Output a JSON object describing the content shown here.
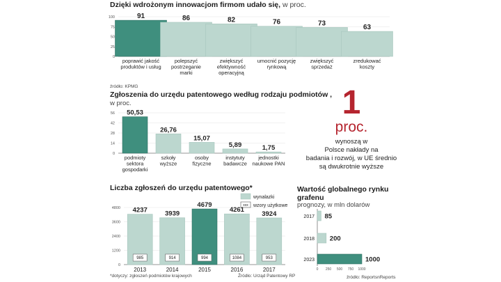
{
  "colors": {
    "highlight": "#3f8f7e",
    "light": "#bcd7cf",
    "accent_red": "#b5252f",
    "axis": "#777777"
  },
  "chart_data": [
    {
      "type": "bar",
      "title": "Dzięki wdrożonym innowacjom firmom udało się,",
      "subtitle": "w proc.",
      "categories": [
        [
          "poprawić jakość",
          "produktów i usług"
        ],
        [
          "polepszyć",
          "postrzeganie",
          "marki"
        ],
        [
          "zwiększyć",
          "efektywność",
          "operacyjną"
        ],
        [
          "umocnić pozycję",
          "rynkową"
        ],
        [
          "zwiększyć",
          "sprzedaż"
        ],
        [
          "zredukować",
          "koszty"
        ]
      ],
      "values": [
        91,
        86,
        82,
        76,
        73,
        63
      ],
      "value_labels": [
        "91",
        "86",
        "82",
        "76",
        "73",
        "63"
      ],
      "yticks": [
        0,
        25,
        50,
        75,
        100
      ],
      "ylim": [
        0,
        100
      ],
      "highlight_index": 0,
      "source": "źródło: KPMG"
    },
    {
      "type": "bar",
      "title": "Zgłoszenia do urzędu patentowego według rodzaju podmiotów ,",
      "subtitle": "w proc.",
      "categories": [
        [
          "podmioty",
          "sektora",
          "gospodarki"
        ],
        [
          "szkoły",
          "wyższe"
        ],
        [
          "osoby",
          "fizyczne"
        ],
        [
          "instytuty",
          "badawcze"
        ],
        [
          "jednostki",
          "naukowe PAN"
        ]
      ],
      "values": [
        50.53,
        26.76,
        15.07,
        5.89,
        1.75
      ],
      "value_labels": [
        "50,53",
        "26,76",
        "15,07",
        "5,89",
        "1,75"
      ],
      "yticks": [
        0,
        14,
        28,
        42,
        56
      ],
      "ylim": [
        0,
        56
      ],
      "highlight_index": 0
    },
    {
      "type": "bar",
      "title": "Liczba zgłoszeń do urzędu patentowego*",
      "categories": [
        "2013",
        "2014",
        "2015",
        "2016",
        "2017"
      ],
      "series": [
        {
          "name": "wynalazki",
          "values": [
            4237,
            3939,
            4679,
            4261,
            3924
          ]
        },
        {
          "name": "wzory użytkowe",
          "values": [
            985,
            914,
            994,
            1084,
            953
          ]
        }
      ],
      "yticks": [
        0,
        1200,
        2400,
        3600,
        4800
      ],
      "ylim": [
        0,
        4800
      ],
      "highlight_index": 2,
      "legend": [
        "wynalazki",
        "wzory użytkowe"
      ],
      "legend_marker": "xxx",
      "footnote": "*dotyczy: zgłoszeń podmiotów krajowych",
      "source": "Źródło: Urząd Patentowy RP"
    },
    {
      "type": "bar",
      "orientation": "horizontal",
      "title": [
        "Wartość globalnego rynku",
        "grafenu"
      ],
      "subtitle": "prognozy, w mln dolarów",
      "categories": [
        "2017",
        "2018",
        "2023"
      ],
      "values": [
        85,
        200,
        1000
      ],
      "xticks": [
        0,
        250,
        500,
        750,
        1000
      ],
      "xlim": [
        0,
        1000
      ],
      "highlight_index": 2,
      "source": "źródło: ReportsnReports"
    }
  ],
  "stat": {
    "number": "1",
    "unit": "proc.",
    "lines": [
      "wynoszą w",
      "Polsce nakłady na",
      "badania i rozwój, w UE średnio",
      "są dwukrotnie wyższe"
    ]
  }
}
